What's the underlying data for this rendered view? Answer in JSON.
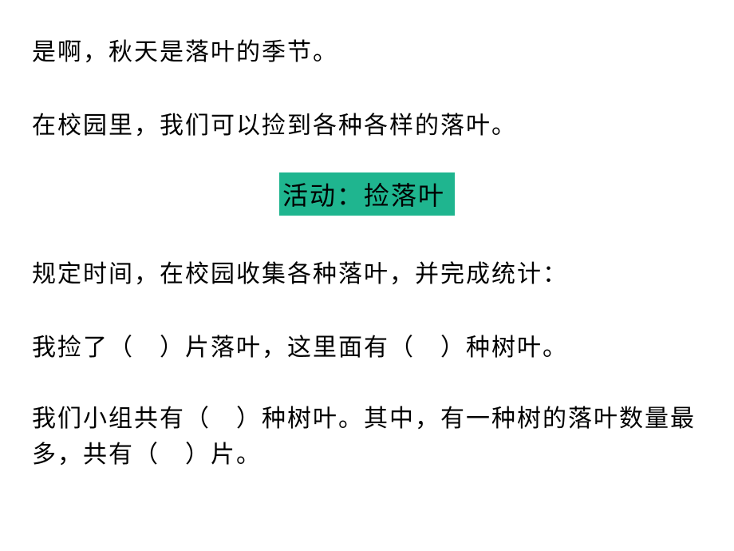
{
  "intro": {
    "line1": "是啊，秋天是落叶的季节。",
    "line2": "在校园里，我们可以捡到各种各样的落叶。"
  },
  "activity": {
    "title": "活动：捡落叶",
    "bg_color": "#1fb58f"
  },
  "instructions": {
    "line3": "规定时间，在校园收集各种落叶，并完成统计：",
    "line4": "我捡了（　）片落叶，这里面有（　）种树叶。",
    "line5": "我们小组共有（　）种树叶。其中，有一种树的落叶数量最多，共有（　）片。"
  },
  "styling": {
    "body_font_size": 30,
    "activity_font_size": 32,
    "text_color": "#000000",
    "background_color": "#ffffff"
  }
}
